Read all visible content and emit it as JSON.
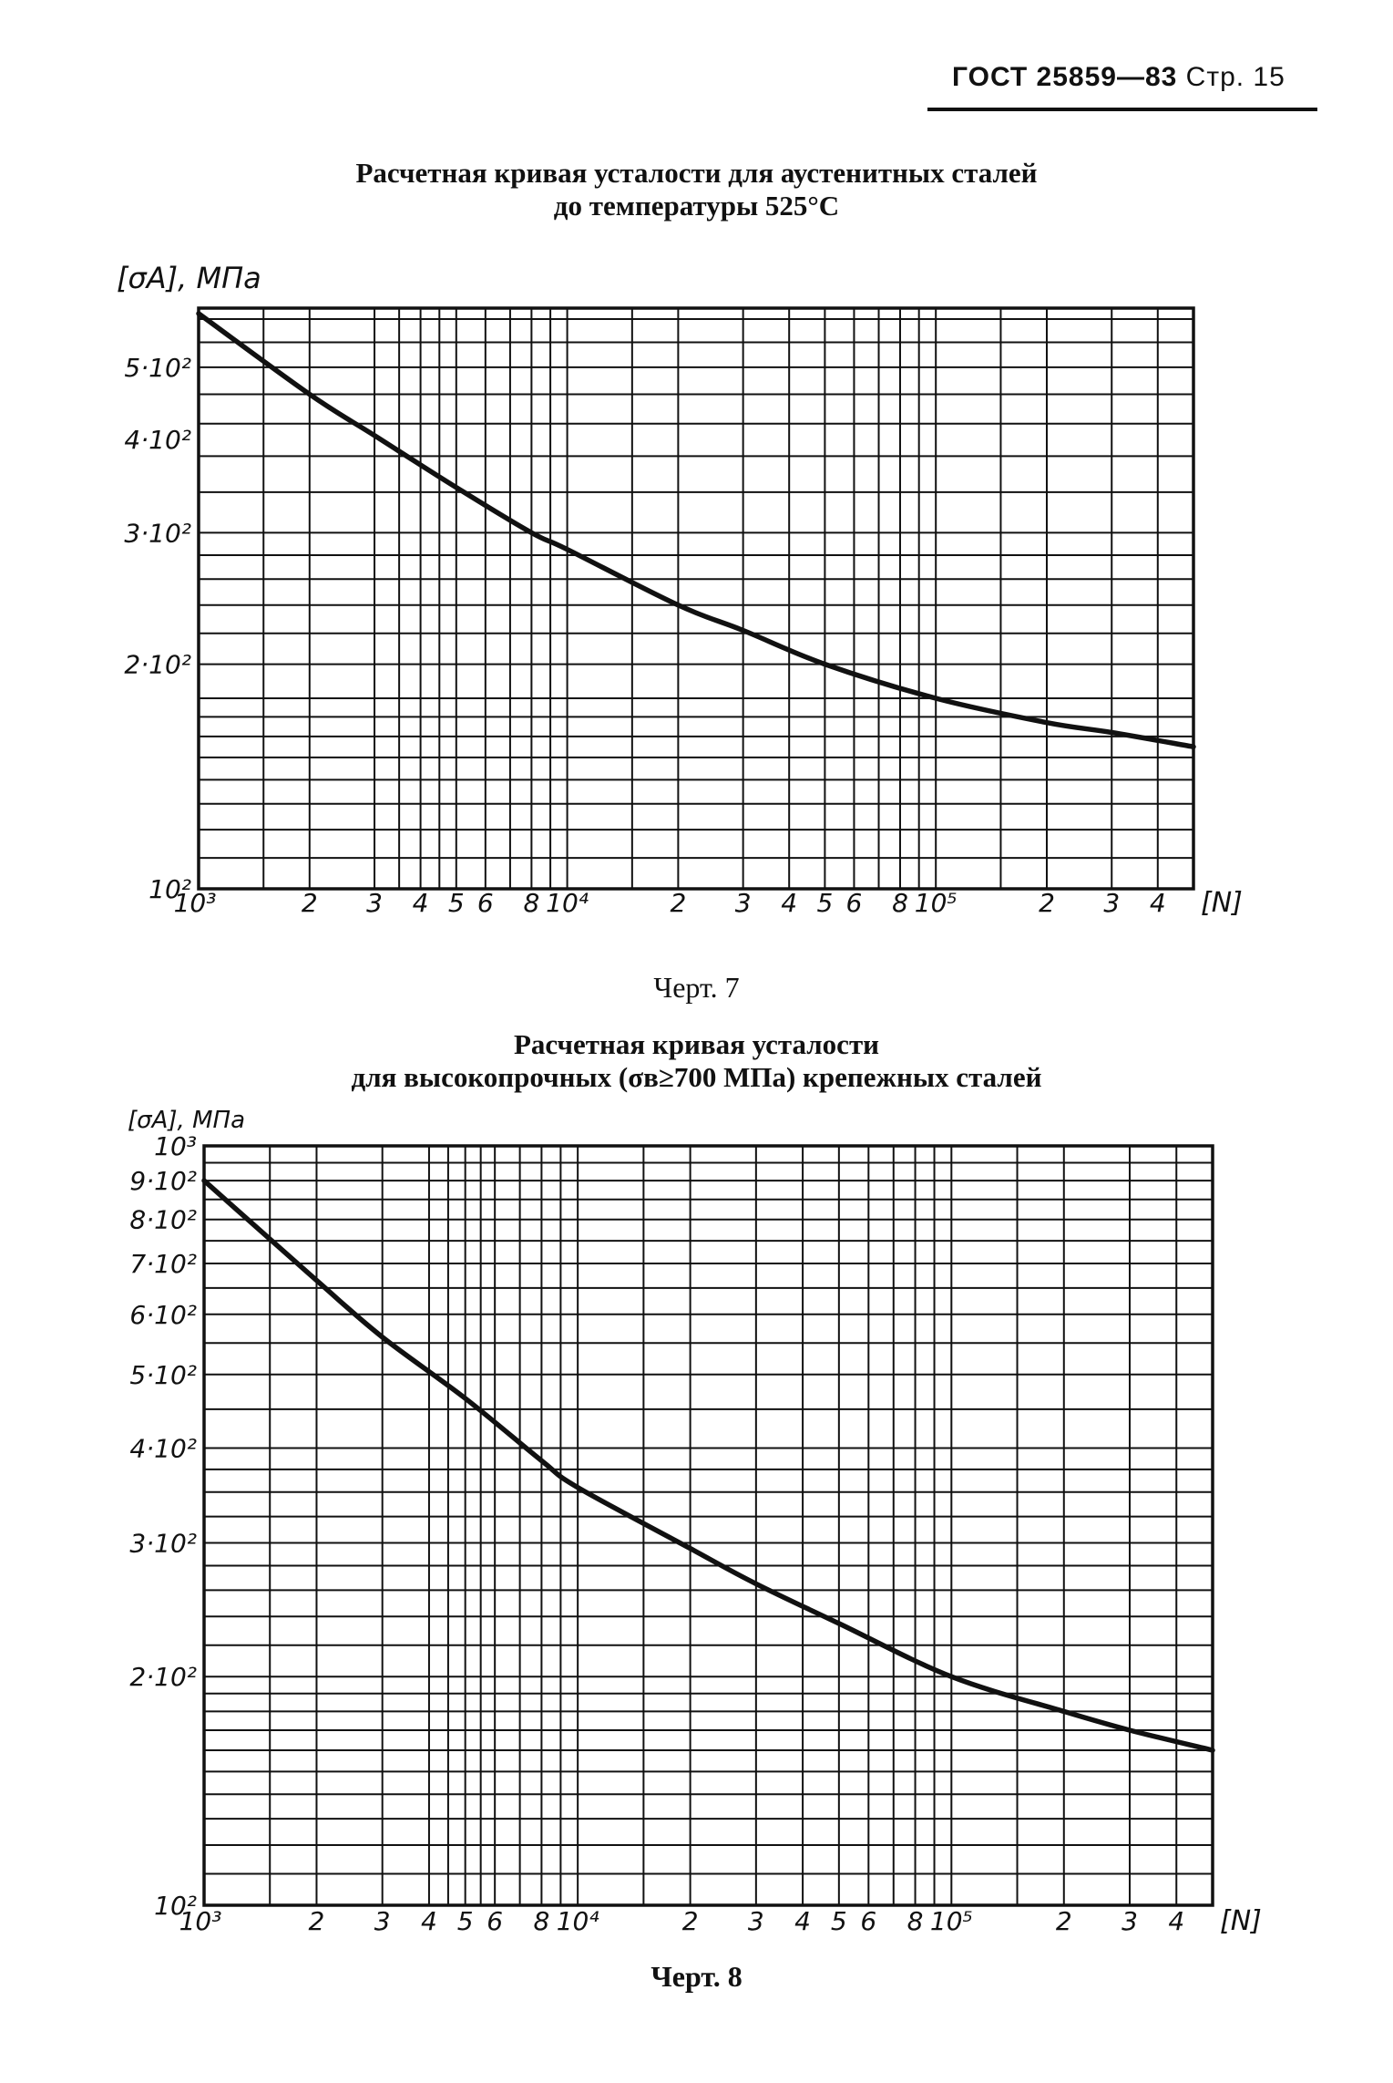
{
  "header": {
    "standard": "ГОСТ 25859—83",
    "page": "Стр. 15"
  },
  "chart_data": [
    {
      "type": "line",
      "title_line1": "Расчетная кривая усталости для аустенитных сталей",
      "title_line2": "до температуры 525°С",
      "caption": "Черт. 7",
      "ylabel": "[σA], МПа",
      "xlabel": "[N]",
      "x_scale": "log",
      "y_scale": "log",
      "xlim": [
        1000,
        500000
      ],
      "ylim": [
        100,
        600
      ],
      "x_tick_labels": [
        {
          "v": 1000,
          "t": "10³"
        },
        {
          "v": 2000,
          "t": "2"
        },
        {
          "v": 3000,
          "t": "3"
        },
        {
          "v": 4000,
          "t": "4"
        },
        {
          "v": 5000,
          "t": "5"
        },
        {
          "v": 6000,
          "t": "6"
        },
        {
          "v": 8000,
          "t": "8"
        },
        {
          "v": 10000,
          "t": "10⁴"
        },
        {
          "v": 20000,
          "t": "2"
        },
        {
          "v": 30000,
          "t": "3"
        },
        {
          "v": 40000,
          "t": "4"
        },
        {
          "v": 50000,
          "t": "5"
        },
        {
          "v": 60000,
          "t": "6"
        },
        {
          "v": 80000,
          "t": "8"
        },
        {
          "v": 100000,
          "t": "10⁵"
        },
        {
          "v": 200000,
          "t": "2"
        },
        {
          "v": 300000,
          "t": "3"
        },
        {
          "v": 400000,
          "t": "4"
        }
      ],
      "y_tick_labels": [
        {
          "v": 100,
          "t": "10²"
        },
        {
          "v": 200,
          "t": "2·10²"
        },
        {
          "v": 300,
          "t": "3·10²"
        },
        {
          "v": 400,
          "t": "4·10²"
        },
        {
          "v": 500,
          "t": "5·10²"
        }
      ],
      "x_grid": [
        1000,
        1500,
        2000,
        3000,
        3500,
        4000,
        4500,
        5000,
        6000,
        7000,
        8000,
        9000,
        10000,
        15000,
        20000,
        30000,
        40000,
        50000,
        60000,
        70000,
        80000,
        90000,
        100000,
        150000,
        200000,
        300000,
        400000,
        500000
      ],
      "y_grid": [
        100,
        110,
        120,
        130,
        140,
        150,
        160,
        170,
        180,
        200,
        220,
        240,
        260,
        280,
        300,
        340,
        380,
        420,
        460,
        500,
        540,
        580
      ],
      "series": [
        {
          "x": [
            1000,
            2000,
            3000,
            5000,
            8000,
            10000,
            20000,
            30000,
            50000,
            100000,
            200000,
            300000,
            500000
          ],
          "y": [
            590,
            460,
            405,
            345,
            300,
            285,
            240,
            222,
            200,
            180,
            167,
            162,
            155
          ]
        }
      ]
    },
    {
      "type": "line",
      "title_line1": "Расчетная кривая усталости",
      "title_line2": "для высокопрочных (σв≥700 МПа) крепежных сталей",
      "caption": "Черт. 8",
      "ylabel": "[σA], МПа",
      "xlabel": "[N]",
      "x_scale": "log",
      "y_scale": "log",
      "xlim": [
        1000,
        500000
      ],
      "ylim": [
        100,
        1000
      ],
      "x_tick_labels": [
        {
          "v": 1000,
          "t": "10³"
        },
        {
          "v": 2000,
          "t": "2"
        },
        {
          "v": 3000,
          "t": "3"
        },
        {
          "v": 4000,
          "t": "4"
        },
        {
          "v": 5000,
          "t": "5"
        },
        {
          "v": 6000,
          "t": "6"
        },
        {
          "v": 8000,
          "t": "8"
        },
        {
          "v": 10000,
          "t": "10⁴"
        },
        {
          "v": 20000,
          "t": "2"
        },
        {
          "v": 30000,
          "t": "3"
        },
        {
          "v": 40000,
          "t": "4"
        },
        {
          "v": 50000,
          "t": "5"
        },
        {
          "v": 60000,
          "t": "6"
        },
        {
          "v": 80000,
          "t": "8"
        },
        {
          "v": 100000,
          "t": "10⁵"
        },
        {
          "v": 200000,
          "t": "2"
        },
        {
          "v": 300000,
          "t": "3"
        },
        {
          "v": 400000,
          "t": "4"
        }
      ],
      "y_tick_labels": [
        {
          "v": 100,
          "t": "10²"
        },
        {
          "v": 200,
          "t": "2·10²"
        },
        {
          "v": 300,
          "t": "3·10²"
        },
        {
          "v": 400,
          "t": "4·10²"
        },
        {
          "v": 500,
          "t": "5·10²"
        },
        {
          "v": 600,
          "t": "6·10²"
        },
        {
          "v": 700,
          "t": "7·10²"
        },
        {
          "v": 800,
          "t": "8·10²"
        },
        {
          "v": 900,
          "t": "9·10²"
        },
        {
          "v": 1000,
          "t": "10³"
        }
      ],
      "x_grid": [
        1000,
        1500,
        2000,
        3000,
        4000,
        4500,
        5000,
        5500,
        6000,
        7000,
        8000,
        9000,
        10000,
        15000,
        20000,
        30000,
        40000,
        50000,
        60000,
        70000,
        80000,
        90000,
        100000,
        150000,
        200000,
        300000,
        400000,
        500000
      ],
      "y_grid": [
        100,
        110,
        120,
        130,
        140,
        150,
        160,
        170,
        180,
        190,
        200,
        220,
        240,
        260,
        280,
        300,
        325,
        350,
        375,
        400,
        450,
        500,
        550,
        600,
        650,
        700,
        750,
        800,
        850,
        900,
        950,
        1000
      ],
      "series": [
        {
          "x": [
            1000,
            2000,
            3000,
            5000,
            8000,
            10000,
            20000,
            30000,
            50000,
            100000,
            200000,
            300000,
            500000
          ],
          "y": [
            900,
            665,
            560,
            465,
            385,
            355,
            295,
            265,
            235,
            200,
            180,
            170,
            160
          ]
        }
      ]
    }
  ]
}
